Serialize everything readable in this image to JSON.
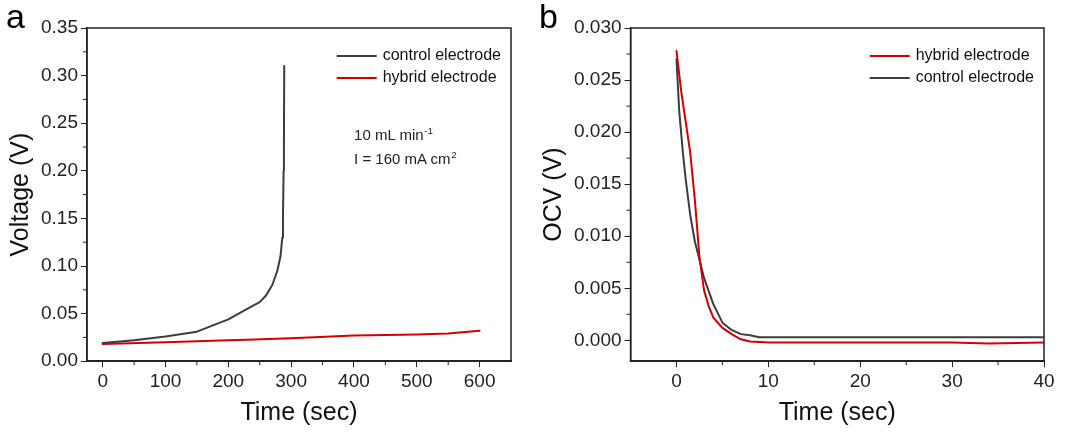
{
  "chart_data": [
    {
      "type": "line",
      "title": "a",
      "xlabel": "Time (sec)",
      "ylabel": "Voltage (V)",
      "legend": "top right",
      "marker": "none",
      "line_style": "solid",
      "grid": false,
      "xlim": [
        -25,
        650
      ],
      "xticks": [
        0,
        100,
        200,
        300,
        400,
        500,
        600
      ],
      "ylim": [
        0,
        0.35
      ],
      "yticks": [
        {
          "value": 0,
          "label": "0.00"
        },
        {
          "value": 0.05,
          "label": "0.05"
        },
        {
          "value": 0.1,
          "label": "0.10"
        },
        {
          "value": 0.15,
          "label": "0.15"
        },
        {
          "value": 0.2,
          "label": "0.20"
        },
        {
          "value": 0.25,
          "label": "0.25"
        },
        {
          "value": 0.3,
          "label": "0.30"
        },
        {
          "value": 0.35,
          "label": "0.35"
        }
      ],
      "annotations": [
        "10 mL min$^{-1}$",
        "I = 160 mA cm$^{2}$"
      ],
      "series": [
        {
          "name": "control electrode",
          "color": "#3c3c3c",
          "x": [
            0,
            50,
            100,
            150,
            200,
            230,
            250,
            260,
            270,
            278,
            283,
            286,
            287,
            288,
            288.5,
            289
          ],
          "values": [
            0.019,
            0.022,
            0.026,
            0.031,
            0.044,
            0.055,
            0.062,
            0.069,
            0.08,
            0.095,
            0.11,
            0.13,
            0.15,
            0.2,
            0.22,
            0.31
          ]
        },
        {
          "name": "hybrid electrode",
          "color": "#d40000",
          "x": [
            0,
            100,
            200,
            300,
            400,
            500,
            550,
            600
          ],
          "values": [
            0.018,
            0.02,
            0.022,
            0.024,
            0.027,
            0.028,
            0.029,
            0.032
          ]
        }
      ]
    },
    {
      "type": "line",
      "title": "b",
      "xlabel": "Time (sec)",
      "ylabel": "OCV (V)",
      "legend": "top right",
      "marker": "none",
      "line_style": "solid",
      "grid": false,
      "xlim": [
        -5,
        40
      ],
      "xticks": [
        0,
        10,
        20,
        30,
        40
      ],
      "ylim": [
        -0.002,
        0.03
      ],
      "yticks": [
        {
          "value": 0,
          "label": "0.000"
        },
        {
          "value": 0.005,
          "label": "0.005"
        },
        {
          "value": 0.01,
          "label": "0.010"
        },
        {
          "value": 0.015,
          "label": "0.015"
        },
        {
          "value": 0.02,
          "label": "0.020"
        },
        {
          "value": 0.025,
          "label": "0.025"
        },
        {
          "value": 0.03,
          "label": "0.030"
        }
      ],
      "series": [
        {
          "name": "hybrid electrode",
          "color": "#d40000",
          "x": [
            0,
            0.5,
            1,
            1.5,
            2,
            2.5,
            3,
            3.5,
            4,
            5,
            6,
            7,
            8,
            10,
            20,
            30,
            34,
            40
          ],
          "values": [
            0.0278,
            0.024,
            0.021,
            0.018,
            0.0135,
            0.008,
            0.0048,
            0.0033,
            0.0022,
            0.0012,
            0.0006,
            0.0001,
            -0.0001,
            -0.0002,
            -0.0002,
            -0.0002,
            -0.0003,
            -0.0002
          ]
        },
        {
          "name": "control electrode",
          "color": "#3c3c3c",
          "x": [
            0,
            0.3,
            0.7,
            1,
            1.5,
            2,
            3,
            4,
            5,
            6,
            7,
            8,
            9,
            10,
            20,
            30,
            40
          ],
          "values": [
            0.027,
            0.022,
            0.018,
            0.0155,
            0.012,
            0.0095,
            0.006,
            0.0035,
            0.0017,
            0.001,
            0.0006,
            0.0005,
            0.0003,
            0.0003,
            0.0003,
            0.0003,
            0.0003
          ]
        }
      ]
    }
  ]
}
